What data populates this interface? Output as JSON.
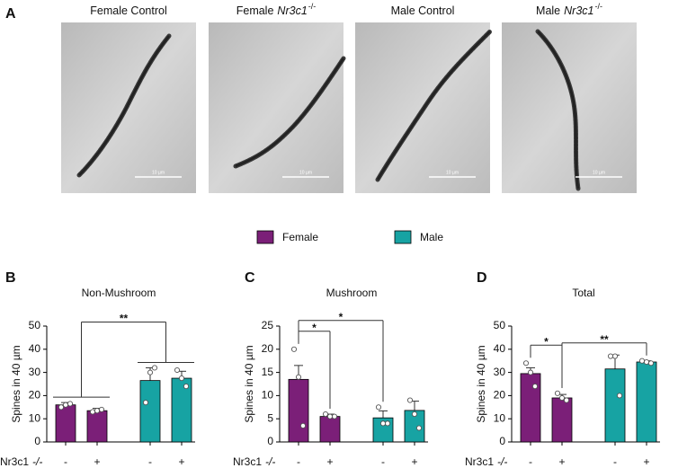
{
  "panel_labels": [
    "A",
    "B",
    "C",
    "D"
  ],
  "images": [
    {
      "title": [
        "Female Control"
      ],
      "scale_bar": "10 µm"
    },
    {
      "title": [
        "Female",
        "Nr3c1",
        "-/-"
      ],
      "scale_bar": "10 µm"
    },
    {
      "title": [
        "Male Control"
      ],
      "scale_bar": "10 µm"
    },
    {
      "title": [
        "Male",
        "Nr3c1",
        "-/-"
      ],
      "scale_bar": "10 µm"
    }
  ],
  "chart_data": [
    {
      "type": "bar",
      "title": "Non-Mushroom",
      "y_label": "Spines in 40 µm",
      "row_label": [
        "Nr3c1",
        "-/-"
      ],
      "categories": [
        "-",
        "+"
      ],
      "ylim": [
        0,
        50
      ],
      "yticks": [
        0,
        10,
        20,
        30,
        40,
        50
      ],
      "series": [
        {
          "name": "Female",
          "color": "#7b1f78",
          "values": [
            16,
            13.5
          ],
          "errors": [
            1,
            1
          ],
          "points": [
            [
              15,
              16,
              16.5
            ],
            [
              13,
              13.5,
              14
            ]
          ]
        },
        {
          "name": "Male",
          "color": "#17a3a3",
          "values": [
            26.5,
            27.5
          ],
          "errors": [
            5.5,
            3
          ],
          "points": [
            [
              17,
              30,
              32
            ],
            [
              31,
              27.5,
              24
            ]
          ]
        }
      ],
      "annotations": [
        {
          "text": "**",
          "from": [
            0,
            1
          ],
          "to": [
            2,
            3
          ]
        }
      ]
    },
    {
      "type": "bar",
      "title": "Mushroom",
      "y_label": "Spines in 40 µm",
      "row_label": [
        "Nr3c1",
        "-/-"
      ],
      "categories": [
        "-",
        "+"
      ],
      "ylim": [
        0,
        25
      ],
      "yticks": [
        0,
        5,
        10,
        15,
        20,
        25
      ],
      "series": [
        {
          "name": "Female",
          "color": "#7b1f78",
          "values": [
            13.5,
            5.5
          ],
          "errors": [
            3,
            0.5
          ],
          "points": [
            [
              20,
              14,
              3.5
            ],
            [
              6,
              5.5,
              5.5
            ]
          ]
        },
        {
          "name": "Male",
          "color": "#17a3a3",
          "values": [
            5.2,
            6.8
          ],
          "errors": [
            1.5,
            2
          ],
          "points": [
            [
              7.5,
              4,
              4
            ],
            [
              9,
              6,
              3
            ]
          ]
        }
      ],
      "annotations": [
        {
          "text": "*",
          "from": [
            0
          ],
          "to": [
            1
          ]
        },
        {
          "text": "*",
          "from": [
            0
          ],
          "to": [
            2
          ]
        }
      ]
    },
    {
      "type": "bar",
      "title": "Total",
      "y_label": "Spines in 40 µm",
      "row_label": [
        "Nr3c1",
        "-/-"
      ],
      "categories": [
        "-",
        "+"
      ],
      "ylim": [
        0,
        50
      ],
      "yticks": [
        0,
        10,
        20,
        30,
        40,
        50
      ],
      "series": [
        {
          "name": "Female",
          "color": "#7b1f78",
          "values": [
            29.5,
            19
          ],
          "errors": [
            2.5,
            1.5
          ],
          "points": [
            [
              34,
              30,
              24
            ],
            [
              21,
              19,
              18
            ]
          ]
        },
        {
          "name": "Male",
          "color": "#17a3a3",
          "values": [
            31.5,
            34.5
          ],
          "errors": [
            6,
            0.5
          ],
          "points": [
            [
              37,
              37,
              20
            ],
            [
              35,
              34.5,
              34
            ]
          ]
        }
      ],
      "annotations": [
        {
          "text": "*",
          "from": [
            0
          ],
          "to": [
            1
          ]
        },
        {
          "text": "**",
          "from": [
            1
          ],
          "to": [
            3
          ]
        }
      ]
    }
  ]
}
